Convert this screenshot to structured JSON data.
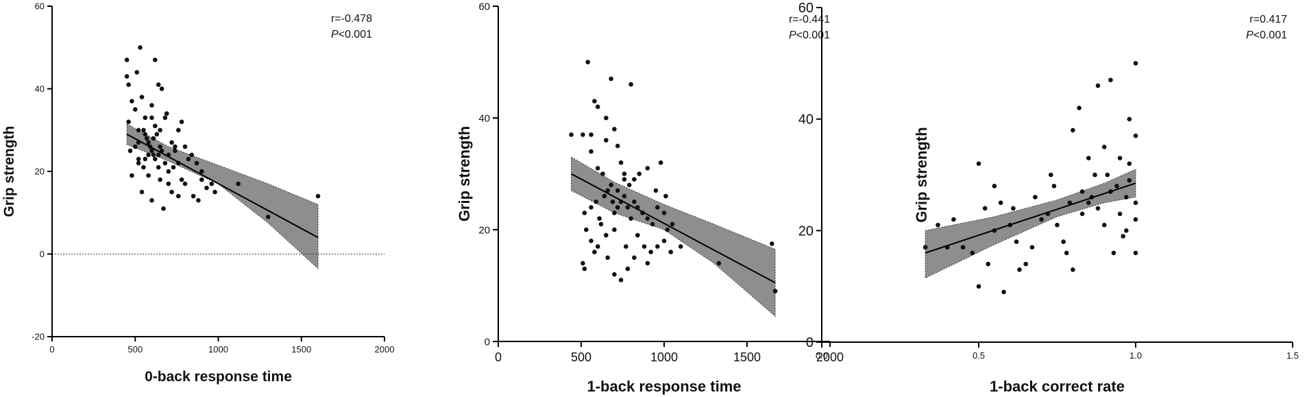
{
  "chart_data": [
    {
      "type": "scatter",
      "xlabel": "0-back response time",
      "ylabel": "Grip strength",
      "xlim": [
        0,
        2000
      ],
      "ylim": [
        -20,
        60
      ],
      "xticks": [
        "0",
        "500",
        "1000",
        "1500",
        "2000"
      ],
      "yticks": [
        "-20",
        "0",
        "20",
        "40",
        "60"
      ],
      "annotation": {
        "r": "r=-0.478",
        "p_italic": "P",
        "p_rest": "<0.001"
      },
      "zero_line": true,
      "colors": {
        "points": "#111111",
        "band": "#7a7a7a",
        "line": "#000000"
      },
      "fit": {
        "x": [
          450,
          1600
        ],
        "y": [
          29.0,
          4.0
        ]
      },
      "band": {
        "x": [
          450,
          700,
          1000,
          1300,
          1600
        ],
        "upper": [
          31.5,
          26.0,
          21.5,
          17.0,
          12.0
        ],
        "lower": [
          26.5,
          22.5,
          17.0,
          7.5,
          -3.5
        ]
      },
      "points": [
        [
          450,
          43
        ],
        [
          460,
          41
        ],
        [
          450,
          47
        ],
        [
          460,
          32
        ],
        [
          480,
          37
        ],
        [
          470,
          25
        ],
        [
          480,
          19
        ],
        [
          500,
          35
        ],
        [
          510,
          44
        ],
        [
          530,
          50
        ],
        [
          520,
          22
        ],
        [
          540,
          38
        ],
        [
          520,
          27
        ],
        [
          560,
          33
        ],
        [
          550,
          30
        ],
        [
          560,
          29
        ],
        [
          570,
          28
        ],
        [
          580,
          27
        ],
        [
          590,
          26
        ],
        [
          600,
          25
        ],
        [
          620,
          47
        ],
        [
          600,
          33
        ],
        [
          620,
          31
        ],
        [
          630,
          29
        ],
        [
          640,
          41
        ],
        [
          660,
          40
        ],
        [
          580,
          24
        ],
        [
          610,
          24
        ],
        [
          620,
          23
        ],
        [
          640,
          24
        ],
        [
          650,
          26
        ],
        [
          660,
          25
        ],
        [
          680,
          22
        ],
        [
          700,
          20
        ],
        [
          700,
          24
        ],
        [
          720,
          27
        ],
        [
          740,
          26
        ],
        [
          760,
          30
        ],
        [
          780,
          32
        ],
        [
          800,
          26
        ],
        [
          820,
          23
        ],
        [
          840,
          24
        ],
        [
          870,
          22
        ],
        [
          900,
          18
        ],
        [
          930,
          16
        ],
        [
          960,
          17
        ],
        [
          550,
          21
        ],
        [
          580,
          19
        ],
        [
          600,
          13
        ],
        [
          650,
          18
        ],
        [
          670,
          11
        ],
        [
          720,
          15
        ],
        [
          760,
          14
        ],
        [
          800,
          17
        ],
        [
          850,
          14
        ],
        [
          900,
          20
        ],
        [
          1120,
          17
        ],
        [
          1300,
          9
        ],
        [
          1600,
          14
        ],
        [
          520,
          23
        ],
        [
          640,
          21
        ],
        [
          700,
          17
        ],
        [
          730,
          21
        ],
        [
          760,
          22
        ],
        [
          780,
          18
        ],
        [
          880,
          13
        ],
        [
          980,
          15
        ],
        [
          540,
          15
        ],
        [
          600,
          36
        ],
        [
          690,
          34
        ],
        [
          520,
          30
        ],
        [
          500,
          26
        ],
        [
          560,
          23
        ],
        [
          610,
          28
        ],
        [
          650,
          30
        ],
        [
          680,
          33
        ],
        [
          740,
          25
        ]
      ]
    },
    {
      "type": "scatter",
      "xlabel": "1-back response time",
      "ylabel": "Grip strength",
      "xlim": [
        0,
        2000
      ],
      "ylim": [
        0,
        60
      ],
      "xticks": [
        "0",
        "500",
        "1000",
        "1500",
        "2000"
      ],
      "yticks": [
        "0",
        "20",
        "40",
        "60"
      ],
      "annotation": {
        "r": "r=-0.441",
        "p_italic": "P",
        "p_rest": "<0.001"
      },
      "zero_line": false,
      "colors": {
        "points": "#111111",
        "band": "#7a7a7a",
        "line": "#000000"
      },
      "fit": {
        "x": [
          440,
          1670
        ],
        "y": [
          30.0,
          10.5
        ]
      },
      "band": {
        "x": [
          440,
          700,
          1000,
          1300,
          1670
        ],
        "upper": [
          33.0,
          28.5,
          24.5,
          21.0,
          16.5
        ],
        "lower": [
          27.0,
          23.0,
          20.0,
          14.0,
          4.5
        ]
      },
      "points": [
        [
          440,
          37
        ],
        [
          510,
          37
        ],
        [
          540,
          50
        ],
        [
          560,
          37
        ],
        [
          580,
          43
        ],
        [
          600,
          42
        ],
        [
          630,
          30
        ],
        [
          650,
          40
        ],
        [
          680,
          47
        ],
        [
          700,
          38
        ],
        [
          720,
          35
        ],
        [
          740,
          32
        ],
        [
          760,
          30
        ],
        [
          800,
          46
        ],
        [
          820,
          29
        ],
        [
          520,
          23
        ],
        [
          560,
          24
        ],
        [
          590,
          25
        ],
        [
          610,
          22
        ],
        [
          640,
          26
        ],
        [
          660,
          27
        ],
        [
          690,
          25
        ],
        [
          700,
          23
        ],
        [
          720,
          24
        ],
        [
          740,
          25
        ],
        [
          760,
          26
        ],
        [
          780,
          24
        ],
        [
          800,
          22
        ],
        [
          820,
          25
        ],
        [
          840,
          24
        ],
        [
          870,
          23
        ],
        [
          900,
          22
        ],
        [
          930,
          21
        ],
        [
          960,
          24
        ],
        [
          1000,
          23
        ],
        [
          1020,
          20
        ],
        [
          1050,
          21
        ],
        [
          510,
          14
        ],
        [
          520,
          13
        ],
        [
          560,
          18
        ],
        [
          600,
          17
        ],
        [
          620,
          21
        ],
        [
          650,
          19
        ],
        [
          700,
          12
        ],
        [
          740,
          11
        ],
        [
          780,
          13
        ],
        [
          840,
          19
        ],
        [
          880,
          17
        ],
        [
          920,
          16
        ],
        [
          960,
          17
        ],
        [
          1000,
          18
        ],
        [
          1040,
          16
        ],
        [
          1100,
          17
        ],
        [
          1330,
          14
        ],
        [
          1650,
          17.5
        ],
        [
          1670,
          9
        ],
        [
          560,
          34
        ],
        [
          600,
          31
        ],
        [
          650,
          36
        ],
        [
          680,
          28
        ],
        [
          720,
          27
        ],
        [
          760,
          29
        ],
        [
          790,
          28
        ],
        [
          850,
          30
        ],
        [
          900,
          31
        ],
        [
          950,
          27
        ],
        [
          980,
          32
        ],
        [
          1010,
          26
        ],
        [
          530,
          20
        ],
        [
          580,
          16
        ],
        [
          660,
          15
        ],
        [
          700,
          20
        ],
        [
          770,
          17
        ],
        [
          820,
          15
        ],
        [
          900,
          14
        ]
      ]
    },
    {
      "type": "scatter",
      "xlabel": "1-back correct rate",
      "ylabel": "Grip strength",
      "xlim": [
        0,
        1.5
      ],
      "ylim": [
        0,
        60
      ],
      "xticks": [
        "0.0",
        "0.5",
        "1.0",
        "1.5"
      ],
      "yticks": [
        "0",
        "20",
        "40",
        "60"
      ],
      "annotation": {
        "r": "r=0.417",
        "p_italic": "P",
        "p_rest": "<0.001"
      },
      "zero_line": false,
      "colors": {
        "points": "#111111",
        "band": "#7a7a7a",
        "line": "#000000"
      },
      "fit": {
        "x": [
          0.33,
          1.0
        ],
        "y": [
          16.0,
          28.5
        ]
      },
      "band": {
        "x": [
          0.33,
          0.55,
          0.75,
          0.9,
          1.0
        ],
        "upper": [
          20.0,
          22.5,
          25.5,
          28.5,
          31.0
        ],
        "lower": [
          11.5,
          17.5,
          22.5,
          25.0,
          26.0
        ]
      },
      "points": [
        [
          0.33,
          17
        ],
        [
          0.37,
          21
        ],
        [
          0.4,
          17
        ],
        [
          0.42,
          22
        ],
        [
          0.45,
          17
        ],
        [
          0.48,
          16
        ],
        [
          0.5,
          10
        ],
        [
          0.5,
          32
        ],
        [
          0.52,
          24
        ],
        [
          0.53,
          14
        ],
        [
          0.55,
          20
        ],
        [
          0.57,
          25
        ],
        [
          0.58,
          9
        ],
        [
          0.6,
          21
        ],
        [
          0.62,
          18
        ],
        [
          0.63,
          13
        ],
        [
          0.65,
          14
        ],
        [
          0.67,
          17
        ],
        [
          0.7,
          22
        ],
        [
          0.72,
          23
        ],
        [
          0.73,
          30
        ],
        [
          0.75,
          21
        ],
        [
          0.77,
          18
        ],
        [
          0.78,
          16
        ],
        [
          0.8,
          13
        ],
        [
          0.8,
          38
        ],
        [
          0.82,
          42
        ],
        [
          0.83,
          27
        ],
        [
          0.85,
          25
        ],
        [
          0.85,
          33
        ],
        [
          0.87,
          30
        ],
        [
          0.88,
          24
        ],
        [
          0.88,
          46
        ],
        [
          0.9,
          35
        ],
        [
          0.9,
          21
        ],
        [
          0.92,
          27
        ],
        [
          0.92,
          47
        ],
        [
          0.93,
          16
        ],
        [
          0.95,
          33
        ],
        [
          0.95,
          23
        ],
        [
          0.97,
          26
        ],
        [
          0.97,
          20
        ],
        [
          0.98,
          40
        ],
        [
          0.98,
          32
        ],
        [
          1.0,
          50
        ],
        [
          1.0,
          37
        ],
        [
          1.0,
          25
        ],
        [
          1.0,
          22
        ],
        [
          1.0,
          16
        ],
        [
          0.98,
          29
        ],
        [
          0.96,
          19
        ],
        [
          0.94,
          28
        ],
        [
          0.91,
          30
        ],
        [
          0.86,
          26
        ],
        [
          0.83,
          23
        ],
        [
          0.79,
          25
        ],
        [
          0.74,
          28
        ],
        [
          0.68,
          26
        ],
        [
          0.61,
          24
        ],
        [
          0.55,
          28
        ]
      ]
    }
  ]
}
